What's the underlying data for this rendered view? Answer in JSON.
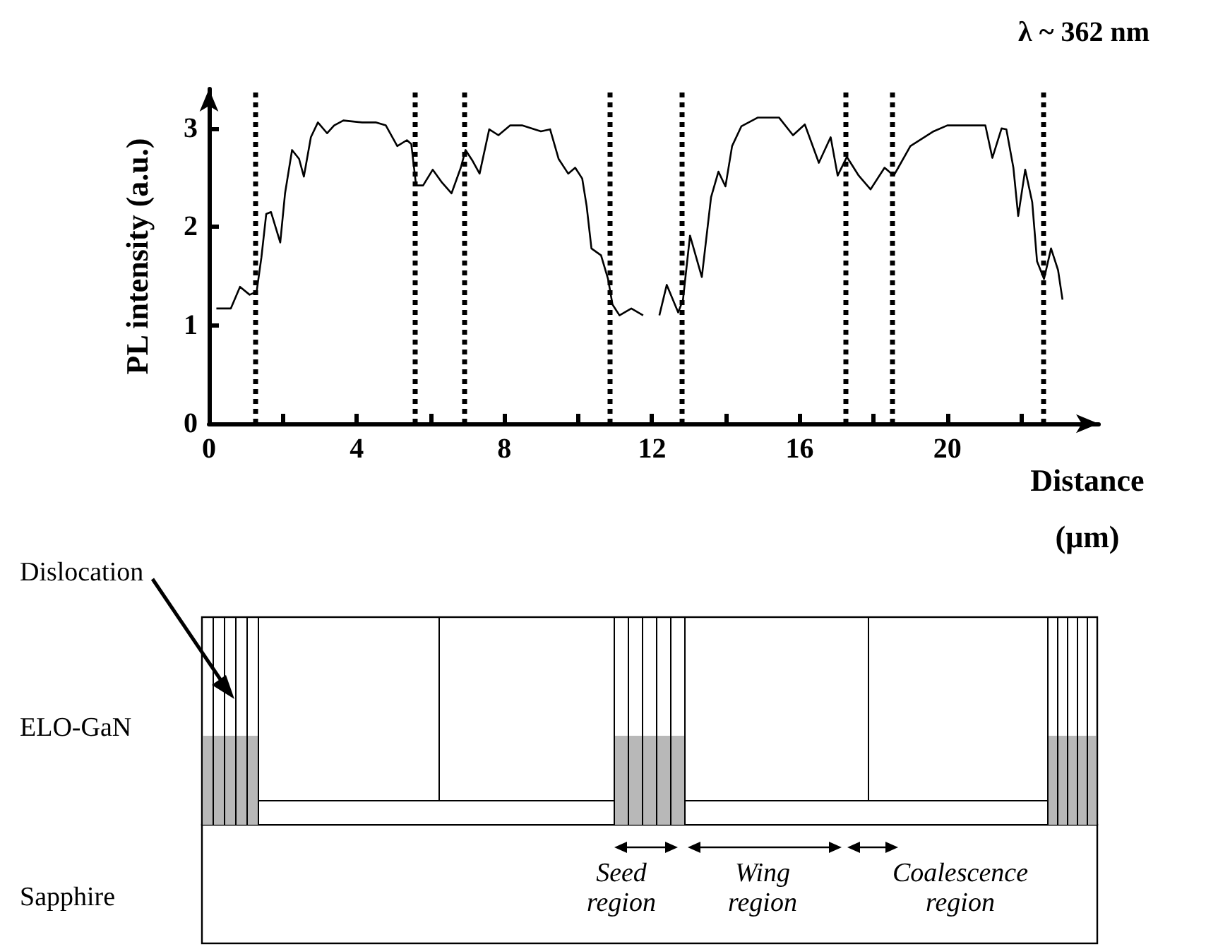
{
  "chart_data": {
    "type": "line",
    "title": "λ ~ 362 nm",
    "xlabel": "Distance (μm)",
    "ylabel": "PL intensity (a.u.)",
    "xlim": [
      0,
      24.1
    ],
    "ylim": [
      0,
      3.4
    ],
    "xticks": [
      0,
      {
        "value": 2,
        "label": null
      },
      4,
      {
        "value": 6,
        "label": null
      },
      8,
      {
        "value": 10,
        "label": null
      },
      12,
      {
        "value": 14,
        "label": null
      },
      16,
      {
        "value": 18,
        "label": null
      },
      20,
      {
        "value": 22,
        "label": null
      }
    ],
    "yticks": [
      0,
      1,
      2,
      3
    ],
    "grid": false,
    "marker": "none",
    "line_style": "solid",
    "x": [
      0.2,
      0.59,
      0.84,
      1.1,
      1.29,
      1.42,
      1.55,
      1.68,
      1.93,
      2.06,
      2.25,
      2.44,
      2.57,
      2.76,
      2.95,
      3.2,
      3.39,
      3.64,
      4.15,
      4.53,
      4.79,
      5.1,
      5.36,
      5.48,
      5.61,
      5.8,
      6.06,
      6.31,
      6.57,
      6.82,
      6.95,
      7.14,
      7.33,
      7.59,
      7.84,
      8.16,
      8.48,
      8.99,
      9.24,
      9.47,
      9.73,
      9.92,
      10.11,
      10.23,
      10.36,
      10.62,
      10.81,
      10.93,
      11.12,
      11.44,
      11.76,
      12.0,
      12.2,
      12.4,
      12.71,
      12.84,
      13.03,
      13.35,
      13.6,
      13.8,
      13.99,
      14.17,
      14.42,
      14.87,
      15.44,
      15.82,
      16.14,
      16.52,
      16.84,
      17.03,
      17.28,
      17.6,
      17.92,
      18.3,
      18.55,
      19.0,
      19.63,
      20.0,
      20.71,
      21.03,
      21.22,
      21.47,
      21.6,
      21.79,
      21.92,
      22.11,
      22.3,
      22.43,
      22.62,
      22.81,
      23.0,
      23.12
    ],
    "series": [
      {
        "color": "#000000",
        "values": [
          1.17,
          1.17,
          1.39,
          1.31,
          1.34,
          1.69,
          2.13,
          2.15,
          1.84,
          2.34,
          2.78,
          2.69,
          2.51,
          2.91,
          3.06,
          2.95,
          3.03,
          3.08,
          3.06,
          3.06,
          3.03,
          2.82,
          2.88,
          2.84,
          2.42,
          2.42,
          2.58,
          2.45,
          2.34,
          2.6,
          2.78,
          2.67,
          2.54,
          2.99,
          2.93,
          3.03,
          3.03,
          2.97,
          2.99,
          2.69,
          2.54,
          2.6,
          2.49,
          2.21,
          1.78,
          1.71,
          1.47,
          1.21,
          1.1,
          1.17,
          1.1,
          null,
          1.1,
          1.41,
          1.13,
          1.26,
          1.91,
          1.49,
          2.3,
          2.56,
          2.41,
          2.82,
          3.02,
          3.11,
          3.11,
          2.93,
          3.04,
          2.65,
          2.91,
          2.52,
          2.71,
          2.52,
          2.38,
          2.6,
          2.52,
          2.82,
          2.97,
          3.03,
          3.03,
          3.03,
          2.7,
          3.0,
          2.99,
          2.6,
          2.11,
          2.58,
          2.25,
          1.65,
          1.47,
          1.78,
          1.56,
          1.26
        ]
      }
    ],
    "ref_lines": [
      {
        "axis": "x",
        "value": 1.26,
        "color": "#000000",
        "line_style": "dotted"
      },
      {
        "axis": "x",
        "value": 5.56,
        "color": "#000000",
        "line_style": "dotted"
      },
      {
        "axis": "x",
        "value": 6.93,
        "color": "#000000",
        "line_style": "dotted"
      },
      {
        "axis": "x",
        "value": 10.86,
        "color": "#000000",
        "line_style": "dotted"
      },
      {
        "axis": "x",
        "value": 12.8,
        "color": "#000000",
        "line_style": "dotted"
      },
      {
        "axis": "x",
        "value": 17.26,
        "color": "#000000",
        "line_style": "dotted"
      },
      {
        "axis": "x",
        "value": 18.5,
        "color": "#000000",
        "line_style": "dotted"
      },
      {
        "axis": "x",
        "value": 22.6,
        "color": "#000000",
        "line_style": "dotted"
      }
    ],
    "annotations": [
      "Dislocation",
      "ELO-GaN",
      "Sapphire",
      "Seed region",
      "Wing region",
      "Coalescence region"
    ]
  }
}
